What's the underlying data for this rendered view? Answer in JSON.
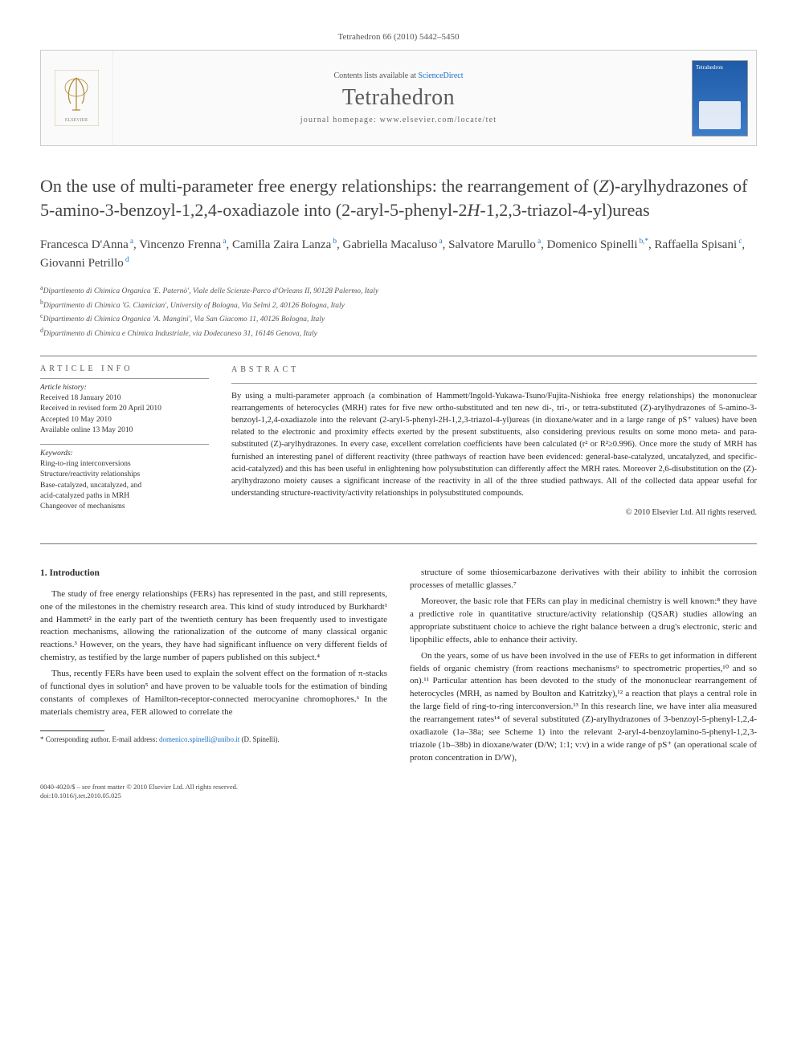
{
  "header": {
    "citation": "Tetrahedron 66 (2010) 5442–5450"
  },
  "masthead": {
    "contents_prefix": "Contents lists available at ",
    "contents_link": "ScienceDirect",
    "journal": "Tetrahedron",
    "homepage_prefix": "journal homepage: ",
    "homepage_url": "www.elsevier.com/locate/tet",
    "cover_label": "Tetrahedron"
  },
  "title": {
    "line1": "On the use of multi-parameter free energy relationships: the rearrangement of (",
    "z": "Z",
    "line2": ")-arylhydrazones of 5-amino-3-benzoyl-1,2,4-oxadiazole into (2-aryl-5-phenyl-2",
    "h": "H",
    "line3": "-1,2,3-triazol-4-yl)ureas"
  },
  "authors": [
    {
      "name": "Francesca D'Anna",
      "sup": "a"
    },
    {
      "name": "Vincenzo Frenna",
      "sup": "a"
    },
    {
      "name": "Camilla Zaira Lanza",
      "sup": "b"
    },
    {
      "name": "Gabriella Macaluso",
      "sup": "a"
    },
    {
      "name": "Salvatore Marullo",
      "sup": "a"
    },
    {
      "name": "Domenico Spinelli",
      "sup": "b,*"
    },
    {
      "name": "Raffaella Spisani",
      "sup": "c"
    },
    {
      "name": "Giovanni Petrillo",
      "sup": "d"
    }
  ],
  "affiliations": [
    {
      "sup": "a",
      "text": "Dipartimento di Chimica Organica 'E. Paternò', Viale delle Scienze-Parco d'Orleans II, 90128 Palermo, Italy"
    },
    {
      "sup": "b",
      "text": "Dipartimento di Chimica 'G. Ciamician', University of Bologna, Via Selmi 2, 40126 Bologna, Italy"
    },
    {
      "sup": "c",
      "text": "Dipartimento di Chimica Organica 'A. Mangini', Via San Giacomo 11, 40126 Bologna, Italy"
    },
    {
      "sup": "d",
      "text": "Dipartimento di Chimica e Chimica Industriale, via Dodecaneso 31, 16146 Genova, Italy"
    }
  ],
  "article_info": {
    "head": "ARTICLE INFO",
    "history_label": "Article history:",
    "history": [
      "Received 18 January 2010",
      "Received in revised form 20 April 2010",
      "Accepted 10 May 2010",
      "Available online 13 May 2010"
    ],
    "keywords_label": "Keywords:",
    "keywords": [
      "Ring-to-ring interconversions",
      "Structure/reactivity relationships",
      "Base-catalyzed, uncatalyzed, and",
      "acid-catalyzed paths in MRH",
      "Changeover of mechanisms"
    ]
  },
  "abstract": {
    "head": "ABSTRACT",
    "text": "By using a multi-parameter approach (a combination of Hammett/Ingold-Yukawa-Tsuno/Fujita-Nishioka free energy relationships) the mononuclear rearrangements of heterocycles (MRH) rates for five new ortho-substituted and ten new di-, tri-, or tetra-substituted (Z)-arylhydrazones of 5-amino-3-benzoyl-1,2,4-oxadiazole into the relevant (2-aryl-5-phenyl-2H-1,2,3-triazol-4-yl)ureas (in dioxane/water and in a large range of pS⁺ values) have been related to the electronic and proximity effects exerted by the present substituents, also considering previous results on some mono meta- and para-substituted (Z)-arylhydrazones. In every case, excellent correlation coefficients have been calculated (r² or R²≥0.996). Once more the study of MRH has furnished an interesting panel of different reactivity (three pathways of reaction have been evidenced: general-base-catalyzed, uncatalyzed, and specific-acid-catalyzed) and this has been useful in enlightening how polysubstitution can differently affect the MRH rates. Moreover 2,6-disubstitution on the (Z)-arylhydrazono moiety causes a significant increase of the reactivity in all of the three studied pathways. All of the collected data appear useful for understanding structure-reactivity/activity relationships in polysubstituted compounds.",
    "copyright": "© 2010 Elsevier Ltd. All rights reserved."
  },
  "section1": {
    "head": "1. Introduction",
    "p1": "The study of free energy relationships (FERs) has represented in the past, and still represents, one of the milestones in the chemistry research area. This kind of study introduced by Burkhardt¹ and Hammett² in the early part of the twentieth century has been frequently used to investigate reaction mechanisms, allowing the rationalization of the outcome of many classical organic reactions.³ However, on the years, they have had significant influence on very different fields of chemistry, as testified by the large number of papers published on this subject.⁴",
    "p2": "Thus, recently FERs have been used to explain the solvent effect on the formation of π-stacks of functional dyes in solution⁵ and have proven to be valuable tools for the estimation of binding constants of complexes of Hamilton-receptor-connected merocyanine chromophores.⁶ In the materials chemistry area, FER allowed to correlate the",
    "p3": "structure of some thiosemicarbazone derivatives with their ability to inhibit the corrosion processes of metallic glasses.⁷",
    "p4": "Moreover, the basic role that FERs can play in medicinal chemistry is well known:⁸ they have a predictive role in quantitative structure/activity relationship (QSAR) studies allowing an appropriate substituent choice to achieve the right balance between a drug's electronic, steric and lipophilic effects, able to enhance their activity.",
    "p5": "On the years, some of us have been involved in the use of FERs to get information in different fields of organic chemistry (from reactions mechanisms⁹ to spectrometric properties,¹⁰ and so on).¹¹ Particular attention has been devoted to the study of the mononuclear rearrangement of heterocycles (MRH, as named by Boulton and Katritzky),¹² a reaction that plays a central role in the large field of ring-to-ring interconversion.¹³ In this research line, we have inter alia measured the rearrangement rates¹⁴ of several substituted (Z)-arylhydrazones of 3-benzoyl-5-phenyl-1,2,4-oxadiazole (1a–38a; see Scheme 1) into the relevant 2-aryl-4-benzoylamino-5-phenyl-1,2,3-triazole (1b–38b) in dioxane/water (D/W; 1:1; v:v) in a wide range of pS⁺ (an operational scale of proton concentration in D/W),"
  },
  "footnote": {
    "marker": "*",
    "label": "Corresponding author. E-mail address: ",
    "email": "domenico.spinelli@unibo.it",
    "tail": " (D. Spinelli)."
  },
  "footer": {
    "line1": "0040-4020/$ – see front matter © 2010 Elsevier Ltd. All rights reserved.",
    "line2": "doi:10.1016/j.tet.2010.05.025"
  },
  "colors": {
    "link": "#1a6fc4",
    "text": "#2d2d2d",
    "rule": "#777777",
    "cover_bg_top": "#1e5ba8",
    "cover_bg_bottom": "#3d7cc9"
  }
}
